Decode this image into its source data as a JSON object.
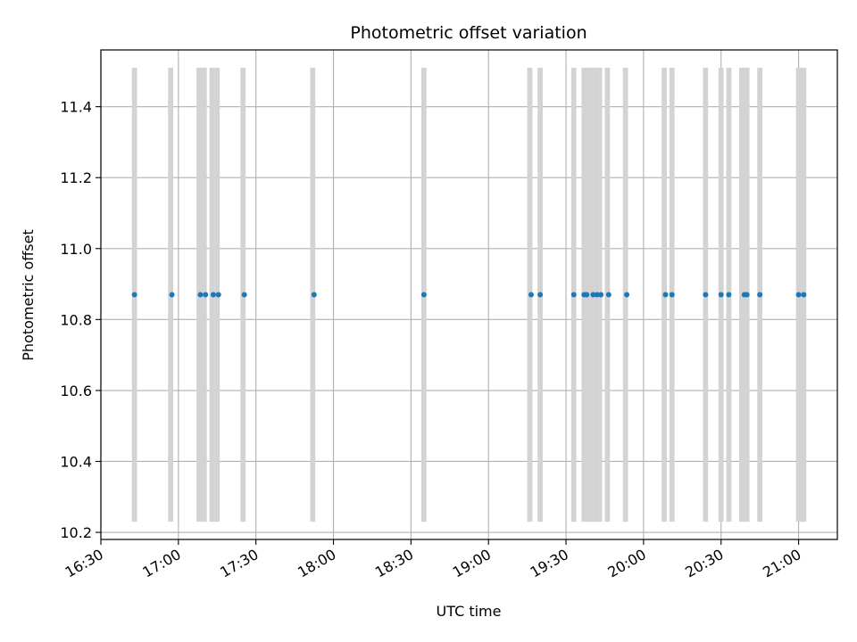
{
  "chart_data": {
    "type": "scatter",
    "title": "Photometric offset variation",
    "xlabel": "UTC time",
    "ylabel": "Photometric offset",
    "x_ticks": [
      "16:30",
      "17:00",
      "17:30",
      "18:00",
      "18:30",
      "19:00",
      "19:30",
      "20:00",
      "20:30",
      "21:00"
    ],
    "y_ticks": [
      "10.2",
      "10.4",
      "10.6",
      "10.8",
      "11.0",
      "11.2",
      "11.4"
    ],
    "xlim": [
      "16:30",
      "21:15"
    ],
    "ylim": [
      10.18,
      11.56
    ],
    "grid": true,
    "series": [
      {
        "color": "#1f77b4",
        "marker": "dot",
        "points": [
          {
            "x": "16:43:00",
            "y": 10.87
          },
          {
            "x": "16:57:30",
            "y": 10.87
          },
          {
            "x": "17:08:30",
            "y": 10.87
          },
          {
            "x": "17:10:30",
            "y": 10.87
          },
          {
            "x": "17:13:30",
            "y": 10.87
          },
          {
            "x": "17:15:30",
            "y": 10.87
          },
          {
            "x": "17:25:30",
            "y": 10.87
          },
          {
            "x": "17:52:30",
            "y": 10.87
          },
          {
            "x": "18:35:00",
            "y": 10.87
          },
          {
            "x": "19:16:30",
            "y": 10.87
          },
          {
            "x": "19:20:00",
            "y": 10.87
          },
          {
            "x": "19:33:00",
            "y": 10.87
          },
          {
            "x": "19:37:00",
            "y": 10.87
          },
          {
            "x": "19:38:00",
            "y": 10.87
          },
          {
            "x": "19:40:30",
            "y": 10.87
          },
          {
            "x": "19:42:00",
            "y": 10.87
          },
          {
            "x": "19:43:30",
            "y": 10.87
          },
          {
            "x": "19:46:30",
            "y": 10.87
          },
          {
            "x": "19:53:30",
            "y": 10.87
          },
          {
            "x": "20:08:30",
            "y": 10.87
          },
          {
            "x": "20:11:00",
            "y": 10.87
          },
          {
            "x": "20:24:00",
            "y": 10.87
          },
          {
            "x": "20:30:00",
            "y": 10.87
          },
          {
            "x": "20:33:00",
            "y": 10.87
          },
          {
            "x": "20:39:00",
            "y": 10.87
          },
          {
            "x": "20:40:00",
            "y": 10.87
          },
          {
            "x": "20:45:00",
            "y": 10.87
          },
          {
            "x": "21:00:00",
            "y": 10.87
          },
          {
            "x": "21:02:00",
            "y": 10.87
          }
        ]
      }
    ],
    "bands": {
      "color": "#d3d3d3",
      "y_range": [
        10.23,
        11.51
      ],
      "intervals": [
        [
          "16:42",
          "16:44"
        ],
        [
          "16:56",
          "16:58"
        ],
        [
          "17:07",
          "17:09"
        ],
        [
          "17:09",
          "17:11"
        ],
        [
          "17:12",
          "17:14"
        ],
        [
          "17:14",
          "17:16"
        ],
        [
          "17:24",
          "17:26"
        ],
        [
          "17:51",
          "17:53"
        ],
        [
          "18:34",
          "18:36"
        ],
        [
          "19:15",
          "19:17"
        ],
        [
          "19:19",
          "19:21"
        ],
        [
          "19:32",
          "19:34"
        ],
        [
          "19:36",
          "19:39"
        ],
        [
          "19:39",
          "19:41"
        ],
        [
          "19:41",
          "19:43"
        ],
        [
          "19:43",
          "19:44"
        ],
        [
          "19:45",
          "19:47"
        ],
        [
          "19:52",
          "19:54"
        ],
        [
          "20:07",
          "20:09"
        ],
        [
          "20:10",
          "20:12"
        ],
        [
          "20:23",
          "20:25"
        ],
        [
          "20:29",
          "20:31"
        ],
        [
          "20:32",
          "20:34"
        ],
        [
          "20:37",
          "20:41"
        ],
        [
          "20:44",
          "20:46"
        ],
        [
          "20:59",
          "21:03"
        ]
      ]
    }
  }
}
